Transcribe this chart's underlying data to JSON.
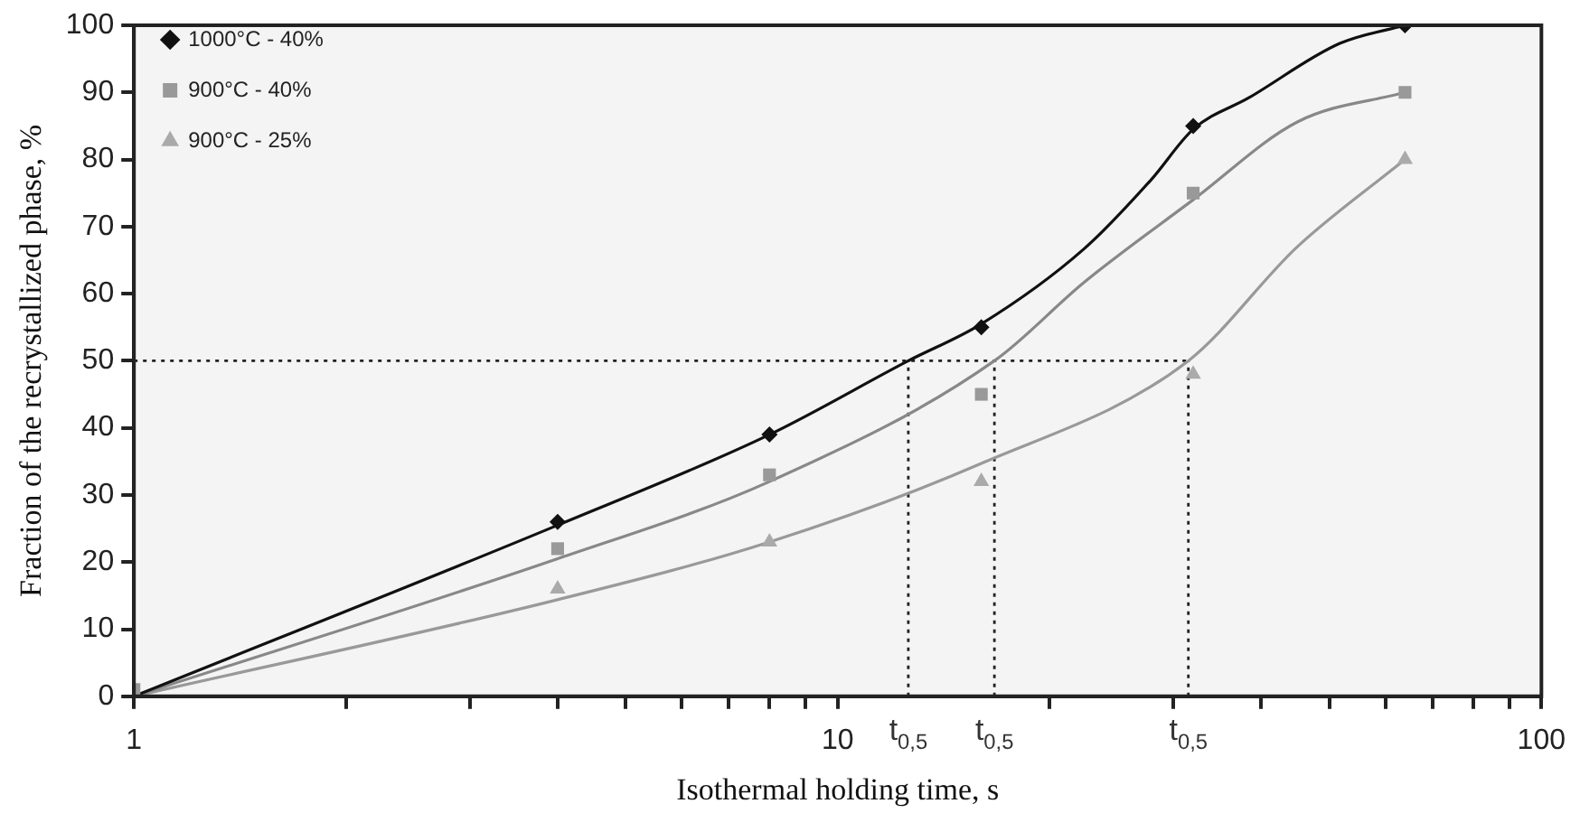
{
  "chart_data": {
    "type": "scatter",
    "xlabel": "Isothermal holding time, s",
    "ylabel": "Fraction of the recrystallized phase, %",
    "log": "x",
    "xlim": [
      1,
      100
    ],
    "ylim": [
      0,
      100
    ],
    "xticks": [
      1,
      {
        "value": 2,
        "label": null
      },
      {
        "value": 3,
        "label": null
      },
      {
        "value": 4,
        "label": null
      },
      {
        "value": 5,
        "label": null
      },
      {
        "value": 6,
        "label": null
      },
      {
        "value": 7,
        "label": null
      },
      {
        "value": 8,
        "label": null
      },
      {
        "value": 9,
        "label": null
      },
      10,
      {
        "value": 20,
        "label": null
      },
      {
        "value": 30,
        "label": null
      },
      {
        "value": 40,
        "label": null
      },
      {
        "value": 50,
        "label": null
      },
      {
        "value": 60,
        "label": null
      },
      {
        "value": 70,
        "label": null
      },
      {
        "value": 80,
        "label": null
      },
      {
        "value": 90,
        "label": null
      },
      100
    ],
    "yticks": [
      0,
      10,
      20,
      30,
      40,
      50,
      60,
      70,
      80,
      90,
      100
    ],
    "grid": false,
    "legend": "top left",
    "series": [
      {
        "name": "1000°C - 40%",
        "color": "#111111",
        "marker": "diamond",
        "x": [
          4,
          8,
          16,
          32,
          64
        ],
        "values": [
          26,
          39,
          55,
          85,
          100
        ]
      },
      {
        "name": "900°C - 40%",
        "color": "#999999",
        "marker": "square",
        "x": [
          1,
          4,
          8,
          16,
          32,
          64
        ],
        "values": [
          1,
          22,
          33,
          45,
          75,
          90
        ]
      },
      {
        "name": "900°C - 25%",
        "color": "#aaaaaa",
        "marker": "triangle",
        "x": [
          4,
          8,
          16,
          32,
          64
        ],
        "values": [
          16,
          23,
          32,
          48,
          80
        ]
      },
      {
        "type": "line",
        "color": "#111111",
        "marker": "none",
        "x": [
          1,
          4,
          8,
          12.6,
          16,
          22.4,
          27.9,
          32,
          38.4,
          51.7,
          64
        ],
        "values": [
          0,
          25.5,
          39,
          50,
          55.5,
          66.7,
          77,
          84.5,
          89.2,
          97.3,
          100
        ]
      },
      {
        "type": "line",
        "color": "#888888",
        "marker": "none",
        "x": [
          1,
          4,
          8,
          16.7,
          22.4,
          32,
          45,
          64
        ],
        "values": [
          0,
          20.5,
          32,
          50,
          61.7,
          74,
          85.6,
          90
        ]
      },
      {
        "type": "line",
        "color": "#999999",
        "marker": "none",
        "x": [
          1,
          4,
          8,
          16,
          31.5,
          45,
          64
        ],
        "values": [
          0,
          14.4,
          23,
          34.7,
          50,
          67,
          80
        ]
      }
    ],
    "ref_lines": [
      {
        "axis": "y",
        "value": 50,
        "line_style": "dotted"
      },
      {
        "axis": "x",
        "value": 12.6,
        "label": "t$_{0,5}$",
        "line_style": "dotted"
      },
      {
        "axis": "x",
        "value": 16.7,
        "label": "t$_{0,5}$",
        "line_style": "dotted"
      },
      {
        "axis": "x",
        "value": 31.5,
        "label": "t$_{0,5}$",
        "line_style": "dotted"
      }
    ]
  }
}
